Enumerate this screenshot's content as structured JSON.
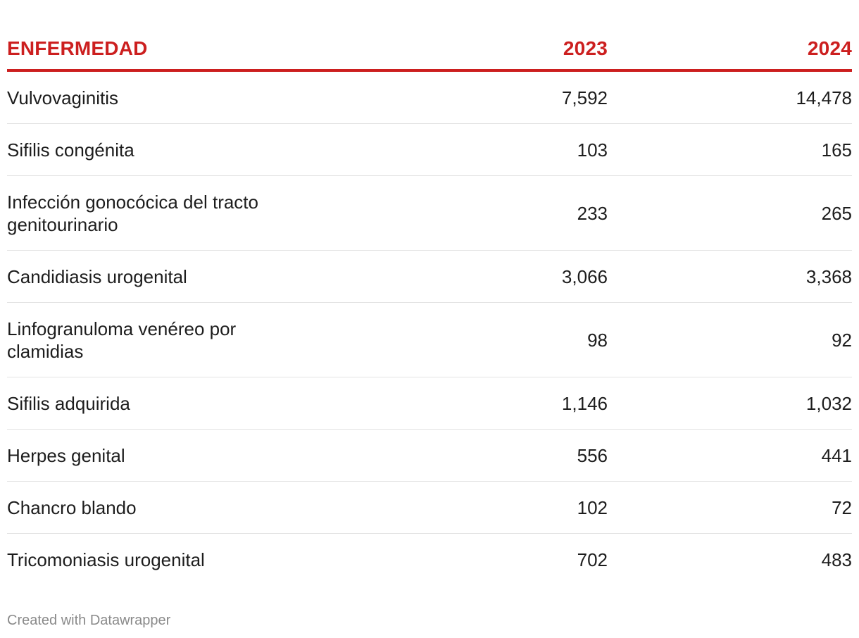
{
  "chart_data": {
    "type": "table",
    "columns": [
      "ENFERMEDAD",
      "2023",
      "2024"
    ],
    "rows": [
      {
        "name": "Vulvovaginitis",
        "v2023": "7,592",
        "v2024": "14,478",
        "lines": 1
      },
      {
        "name": "Sifilis congénita",
        "v2023": "103",
        "v2024": "165",
        "lines": 1
      },
      {
        "name": "Infección gonocócica del tracto genitourinario",
        "v2023": "233",
        "v2024": "265",
        "lines": 2
      },
      {
        "name": "Candidiasis urogenital",
        "v2023": "3,066",
        "v2024": "3,368",
        "lines": 1
      },
      {
        "name": "Linfogranuloma venéreo por clamidias",
        "v2023": "98",
        "v2024": "92",
        "lines": 2
      },
      {
        "name": "Sifilis adquirida",
        "v2023": "1,146",
        "v2024": "1,032",
        "lines": 1
      },
      {
        "name": "Herpes genital",
        "v2023": "556",
        "v2024": "441",
        "lines": 1
      },
      {
        "name": "Chancro blando",
        "v2023": "102",
        "v2024": "72",
        "lines": 1
      },
      {
        "name": "Tricomoniasis urogenital",
        "v2023": "702",
        "v2024": "483",
        "lines": 1
      }
    ]
  },
  "colors": {
    "header": "#cc1f1f",
    "text": "#1d1d1d",
    "divider": "#e2e2e2",
    "footer": "#8a8a8a"
  },
  "footer": {
    "credit": "Created with Datawrapper"
  }
}
